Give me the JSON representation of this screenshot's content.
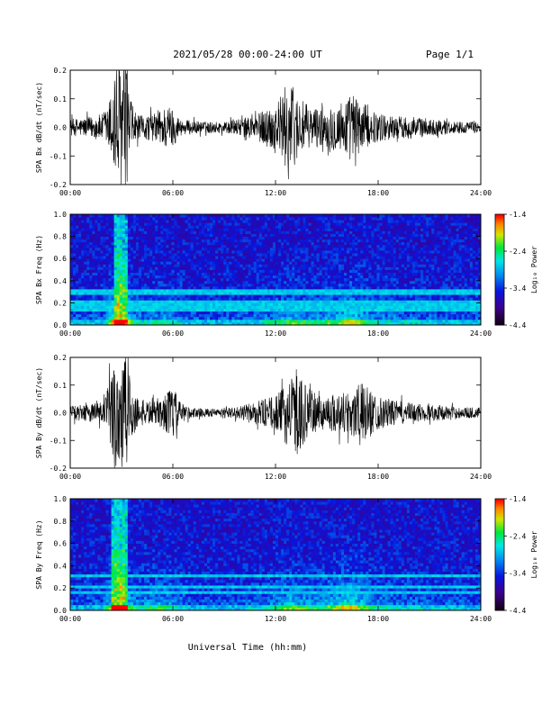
{
  "header": {
    "title": "2021/05/28  00:00-24:00 UT",
    "page": "Page 1/1"
  },
  "chart_data": [
    {
      "type": "line",
      "panel": "SPA Bx dB/dt",
      "ylabel": "SPA Bx dB/dt (nT/sec)",
      "xlim": [
        "00:00",
        "24:00"
      ],
      "ylim": [
        -0.2,
        0.2
      ],
      "xticks": [
        "00:00",
        "06:00",
        "12:00",
        "18:00",
        "24:00"
      ],
      "yticks": [
        "0.2",
        "0.1",
        "0.0",
        "-0.1",
        "-0.2"
      ],
      "envelope": {
        "hours": [
          0,
          1,
          2,
          2.4,
          2.7,
          3.0,
          3.3,
          3.6,
          4,
          5,
          5.6,
          6,
          6.4,
          7,
          8,
          9,
          10,
          11,
          11.8,
          12.4,
          12.8,
          13.2,
          14,
          15,
          16,
          16.5,
          17,
          17.5,
          18,
          19,
          20,
          21,
          22,
          23,
          24
        ],
        "amplitude": [
          0.03,
          0.035,
          0.05,
          0.12,
          0.25,
          0.25,
          0.2,
          0.08,
          0.04,
          0.05,
          0.08,
          0.07,
          0.03,
          0.025,
          0.02,
          0.02,
          0.03,
          0.05,
          0.08,
          0.12,
          0.18,
          0.12,
          0.07,
          0.07,
          0.1,
          0.12,
          0.1,
          0.06,
          0.05,
          0.04,
          0.04,
          0.03,
          0.025,
          0.02,
          0.02
        ]
      }
    },
    {
      "type": "heatmap",
      "panel": "SPA Bx Freq",
      "ylabel": "SPA Bx Freq (Hz)",
      "xlim": [
        "00:00",
        "24:00"
      ],
      "ylim": [
        0.0,
        1.0
      ],
      "xticks": [
        "00:00",
        "06:00",
        "12:00",
        "18:00",
        "24:00"
      ],
      "yticks": [
        "1.0",
        "0.8",
        "0.6",
        "0.4",
        "0.2",
        "0.0"
      ],
      "colorbar": {
        "label": "Log₁₀ Power",
        "range": [
          -4.4,
          -1.4
        ],
        "ticks": [
          "-1.4",
          "-2.4",
          "-3.4",
          "-4.4"
        ]
      },
      "activity": {
        "hours": [
          0,
          2,
          2.5,
          2.8,
          3.2,
          3.5,
          4,
          5.5,
          6,
          7,
          10,
          11.5,
          12.5,
          13,
          14,
          15.5,
          16.3,
          17,
          18,
          20,
          24
        ],
        "level": [
          0.25,
          0.3,
          0.8,
          1.0,
          0.9,
          0.55,
          0.35,
          0.45,
          0.4,
          0.25,
          0.25,
          0.35,
          0.5,
          0.55,
          0.45,
          0.55,
          0.75,
          0.55,
          0.4,
          0.3,
          0.25
        ]
      },
      "lines_hz": [
        0.28,
        0.31,
        0.2,
        0.15
      ]
    },
    {
      "type": "line",
      "panel": "SPA By dB/dt",
      "ylabel": "SPA By dB/dt (nT/sec)",
      "xlim": [
        "00:00",
        "24:00"
      ],
      "ylim": [
        -0.2,
        0.2
      ],
      "xticks": [
        "00:00",
        "06:00",
        "12:00",
        "18:00",
        "24:00"
      ],
      "yticks": [
        "0.2",
        "0.1",
        "0.0",
        "-0.1",
        "-0.2"
      ],
      "envelope": {
        "hours": [
          0,
          1,
          2,
          2.4,
          2.7,
          3.0,
          3.3,
          3.6,
          4,
          5,
          5.6,
          6,
          6.4,
          7,
          8,
          9,
          10,
          11,
          12,
          12.6,
          13.2,
          13.8,
          14.5,
          15.5,
          16.5,
          17,
          17.5,
          18,
          19,
          20,
          21,
          22,
          23,
          24
        ],
        "amplitude": [
          0.025,
          0.03,
          0.05,
          0.14,
          0.25,
          0.25,
          0.24,
          0.1,
          0.05,
          0.04,
          0.07,
          0.1,
          0.04,
          0.02,
          0.015,
          0.015,
          0.025,
          0.045,
          0.06,
          0.1,
          0.16,
          0.1,
          0.06,
          0.07,
          0.09,
          0.11,
          0.09,
          0.06,
          0.045,
          0.035,
          0.03,
          0.025,
          0.02,
          0.02
        ]
      }
    },
    {
      "type": "heatmap",
      "panel": "SPA By Freq",
      "ylabel": "SPA By Freq (Hz)",
      "xlim": [
        "00:00",
        "24:00"
      ],
      "ylim": [
        0.0,
        1.0
      ],
      "xticks": [
        "00:00",
        "06:00",
        "12:00",
        "18:00",
        "24:00"
      ],
      "yticks": [
        "1.0",
        "0.8",
        "0.6",
        "0.4",
        "0.2",
        "0.0"
      ],
      "colorbar": {
        "label": "Log₁₀ Power",
        "range": [
          -4.4,
          -1.4
        ],
        "ticks": [
          "-1.4",
          "-2.4",
          "-3.4",
          "-4.4"
        ]
      },
      "activity": {
        "hours": [
          0,
          2,
          2.5,
          2.8,
          3.2,
          3.5,
          4,
          5.5,
          6,
          7,
          10,
          11.5,
          12.5,
          13,
          14,
          15.5,
          16.3,
          17,
          18,
          20,
          24
        ],
        "level": [
          0.25,
          0.3,
          0.85,
          1.0,
          0.9,
          0.55,
          0.4,
          0.5,
          0.45,
          0.25,
          0.25,
          0.35,
          0.55,
          0.6,
          0.45,
          0.6,
          0.8,
          0.6,
          0.4,
          0.3,
          0.25
        ]
      },
      "lines_hz": [
        0.31,
        0.22,
        0.17
      ]
    }
  ],
  "footer": {
    "xlabel": "Universal Time (hh:mm)"
  }
}
